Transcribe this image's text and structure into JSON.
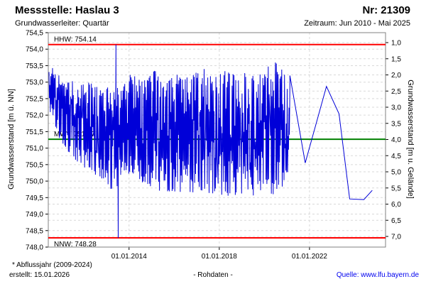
{
  "header": {
    "title": "Messstelle: Haslau 3",
    "station_no": "Nr: 21309",
    "aquifer": "Grundwasserleiter: Quartär",
    "period": "Zeitraum: Jun 2010 - Mai 2025"
  },
  "footer": {
    "footnote": "* Abflussjahr (2009-2024)",
    "created": "erstellt: 15.01.2026",
    "center_label": "- Rohdaten -",
    "source": "Quelle: www.lfu.bayern.de"
  },
  "chart_data": {
    "type": "line",
    "grid": {
      "color": "#d9d9d9",
      "dash": "3,3",
      "frame_color": "#808080"
    },
    "y_left": {
      "label": "Grundwasserstand [m ü. NN]",
      "range": [
        748.0,
        754.5
      ],
      "tick_values": [
        754.5,
        754.0,
        753.5,
        753.0,
        752.5,
        752.0,
        751.5,
        751.0,
        750.5,
        750.0,
        749.5,
        749.0,
        748.5,
        748.0
      ],
      "tick_labels": [
        "754,5",
        "754,0",
        "753,5",
        "753,0",
        "752,5",
        "752,0",
        "751,5",
        "751,0",
        "750,5",
        "750,0",
        "749,5",
        "749,0",
        "748,5",
        "748,0"
      ]
    },
    "y_right": {
      "label": "Grundwasserstand [m u. Gelände]",
      "tick_values": [
        1.0,
        1.5,
        2.0,
        2.5,
        3.0,
        3.5,
        4.0,
        4.5,
        5.0,
        5.5,
        6.0,
        6.5,
        7.0
      ],
      "tick_labels": [
        "1,0",
        "1,5",
        "2,0",
        "2,5",
        "3,0",
        "3,5",
        "4,0",
        "4,5",
        "5,0",
        "5,5",
        "6,0",
        "6,5",
        "7,0"
      ]
    },
    "x_axis": {
      "range_years": [
        2010.42,
        2025.37
      ],
      "tick_years": [
        2014,
        2018,
        2022
      ],
      "tick_labels": [
        "01.01.2014",
        "01.01.2018",
        "01.01.2022"
      ]
    },
    "reference_lines": [
      {
        "name": "HHW",
        "label": "HHW: 754.14",
        "value": 754.14,
        "color": "#ff0000",
        "label_side": "above"
      },
      {
        "name": "MW",
        "label": "MW*: 751.27",
        "value": 751.27,
        "color": "#008000",
        "label_side": "above"
      },
      {
        "name": "NNW",
        "label": "NNW: 748.28",
        "value": 748.28,
        "color": "#ff0000",
        "label_side": "below"
      }
    ],
    "series": {
      "name": "Grundwasserstand Rohdaten",
      "color": "#0000d8",
      "noise_seed": 11,
      "step_years": 0.02,
      "dense_envelope": [
        [
          2010.45,
          752.2,
          753.55
        ],
        [
          2010.9,
          751.3,
          753.3
        ],
        [
          2011.3,
          750.9,
          753.15
        ],
        [
          2011.8,
          750.5,
          752.9
        ],
        [
          2012.3,
          750.3,
          753.0
        ],
        [
          2012.9,
          750.0,
          752.7
        ],
        [
          2013.25,
          749.7,
          753.1
        ],
        [
          2013.6,
          749.9,
          752.7
        ],
        [
          2014.1,
          750.3,
          753.3
        ],
        [
          2014.6,
          749.9,
          753.0
        ],
        [
          2015.1,
          749.8,
          753.4
        ],
        [
          2015.6,
          749.6,
          752.9
        ],
        [
          2016.1,
          749.7,
          753.3
        ],
        [
          2016.7,
          749.6,
          753.1
        ],
        [
          2017.2,
          749.7,
          753.5
        ],
        [
          2017.8,
          749.6,
          753.2
        ],
        [
          2018.3,
          749.5,
          753.4
        ],
        [
          2018.9,
          749.6,
          753.1
        ],
        [
          2019.4,
          749.5,
          753.5
        ],
        [
          2019.9,
          749.7,
          753.3
        ],
        [
          2020.4,
          749.6,
          753.7
        ],
        [
          2020.9,
          749.9,
          753.3
        ],
        [
          2021.13,
          750.4,
          753.23
        ]
      ],
      "spikes": [
        [
          2013.42,
          754.14
        ],
        [
          2013.52,
          748.28
        ]
      ],
      "tail_points": [
        [
          2021.13,
          753.2
        ],
        [
          2021.81,
          750.55
        ],
        [
          2022.75,
          752.87
        ],
        [
          2023.31,
          752.04
        ],
        [
          2023.78,
          749.46
        ],
        [
          2024.41,
          749.44
        ],
        [
          2024.78,
          749.72
        ]
      ]
    }
  }
}
